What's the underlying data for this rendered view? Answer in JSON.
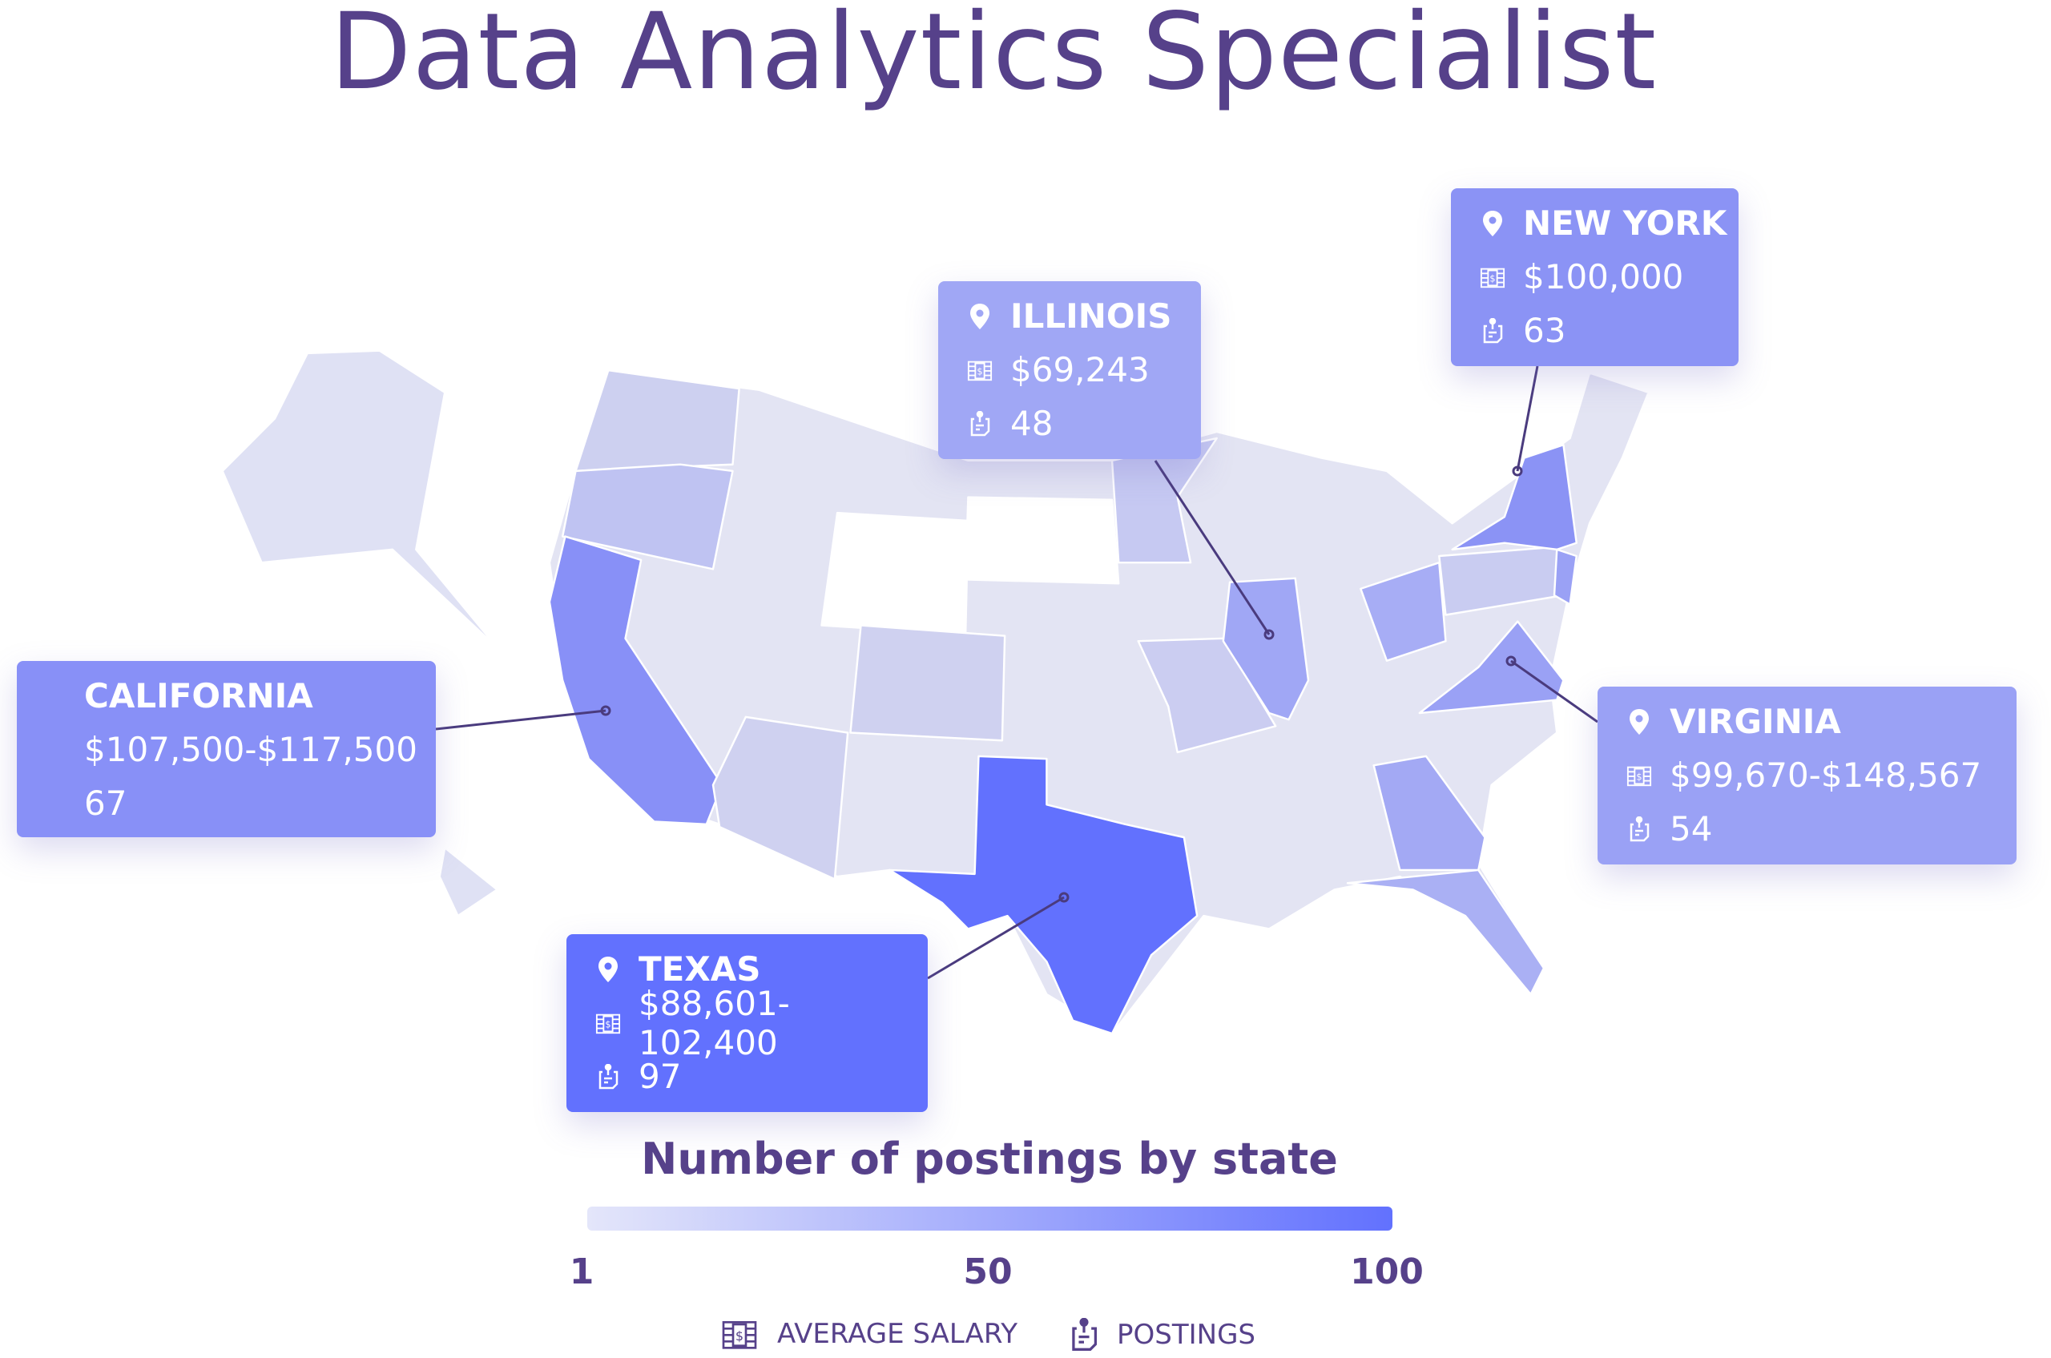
{
  "title": "Data Analytics Specialist",
  "colors": {
    "title": "#56418a",
    "scale_low": "#e4e6fa",
    "scale_high": "#6271fe",
    "state_base": "#dfe1f4"
  },
  "callouts": [
    {
      "state": "CALIFORNIA",
      "salary": "$107,500-$117,500",
      "postings": "67",
      "color": "#8890f7"
    },
    {
      "state": "ILLINOIS",
      "salary": "$69,243",
      "postings": "48",
      "color": "#a0a7f5",
      "icons": [
        "map-pin-icon",
        "salary-icon",
        "postings-icon"
      ]
    },
    {
      "state": "NEW YORK",
      "salary": "$100,000",
      "postings": "63",
      "color": "#8b93f5",
      "icons": [
        "map-pin-icon",
        "salary-icon",
        "postings-icon"
      ]
    },
    {
      "state": "VIRGINIA",
      "salary": "$99,670-$148,567",
      "postings": "54",
      "color": "#9aa1f5",
      "icons": [
        "map-pin-icon",
        "salary-icon",
        "postings-icon"
      ]
    },
    {
      "state": "TEXAS",
      "salary": "$88,601-102,400",
      "postings": "97",
      "color": "#6271fe",
      "icons": [
        "map-pin-icon",
        "salary-icon",
        "postings-icon"
      ]
    }
  ],
  "legend": {
    "title": "Number of postings by state",
    "ticks": [
      "1",
      "50",
      "100"
    ],
    "range": [
      1,
      100
    ],
    "keys": [
      {
        "label": "AVERAGE SALARY",
        "icon": "salary-icon"
      },
      {
        "label": "POSTINGS",
        "icon": "postings-icon"
      }
    ]
  }
}
